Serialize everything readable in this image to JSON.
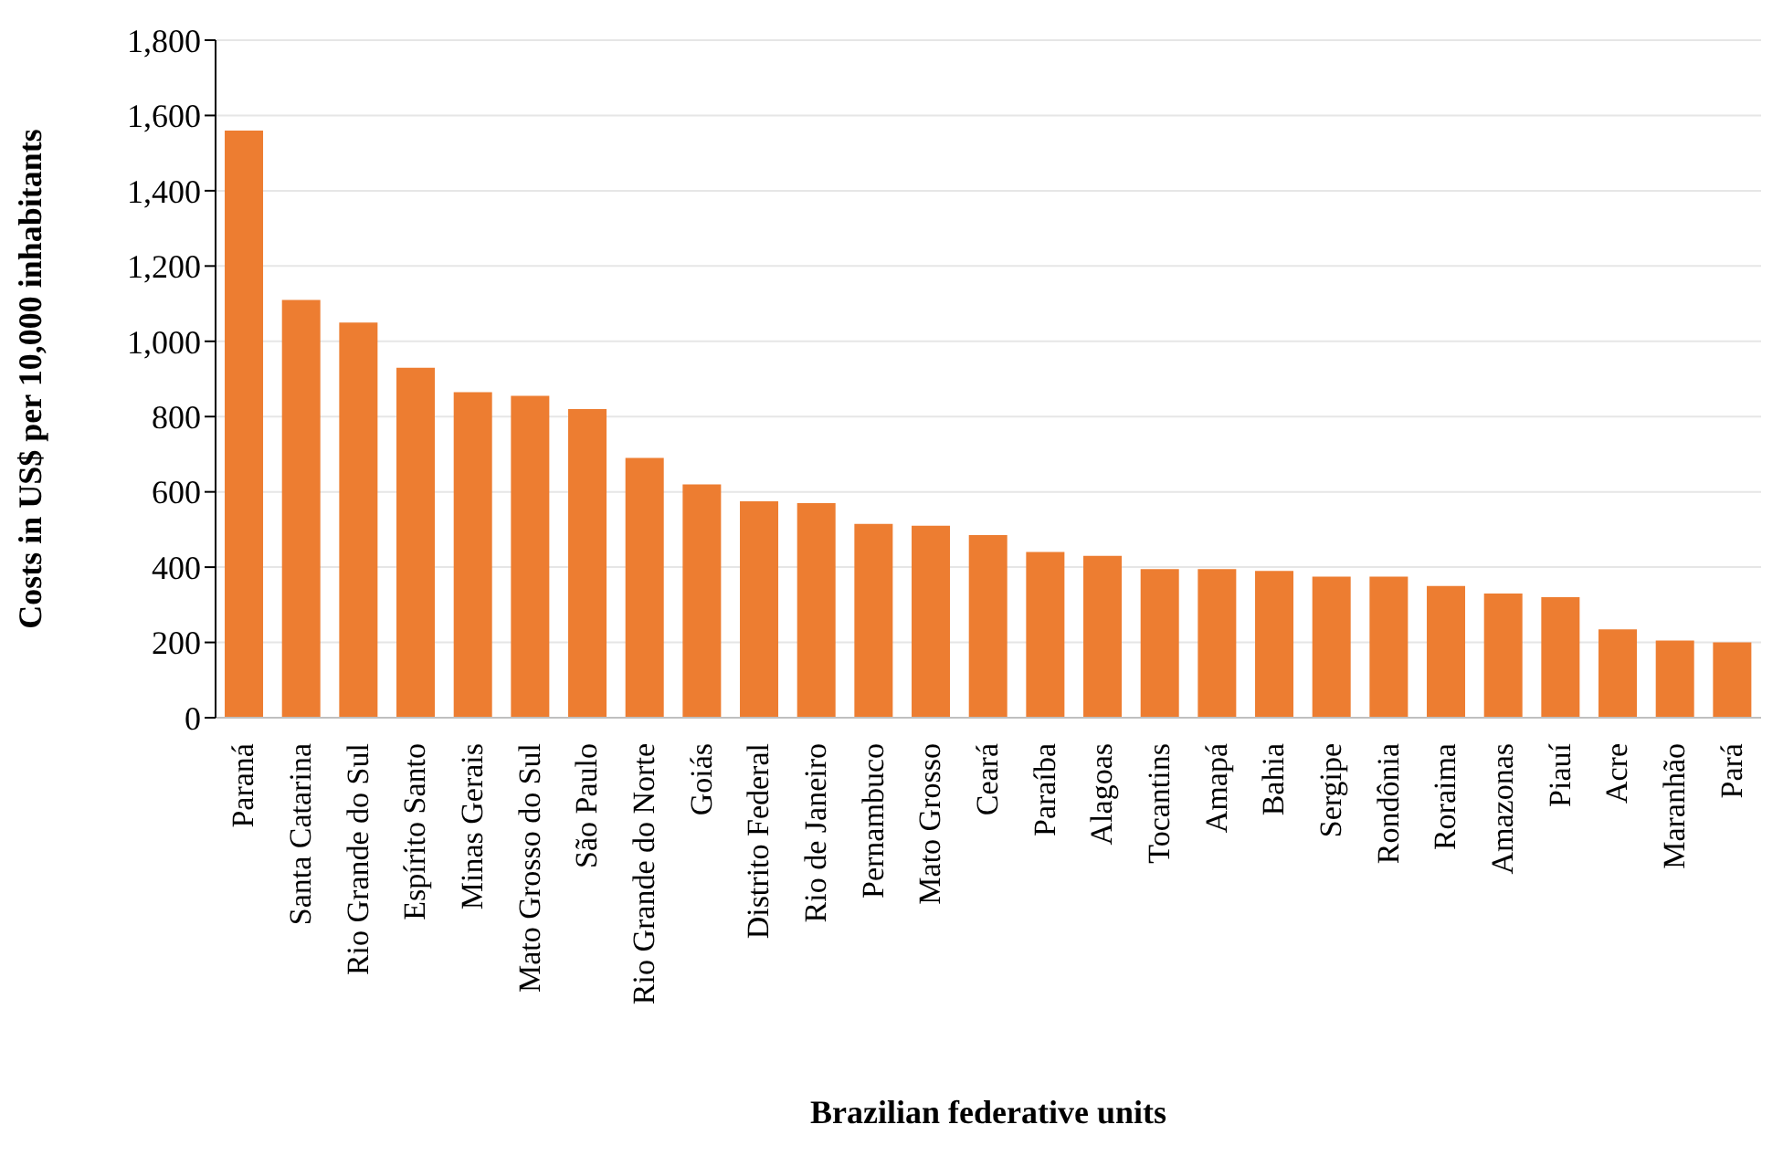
{
  "chart_data": {
    "type": "bar",
    "xlabel": "Brazilian federative units",
    "ylabel": "Costs in US$ per 10,000 inhabitants",
    "categories": [
      "Paraná",
      "Santa Catarina",
      "Rio Grande do Sul",
      "Espírito Santo",
      "Minas Gerais",
      "Mato Grosso do Sul",
      "São Paulo",
      "Rio Grande do Norte",
      "Goiás",
      "Distrito Federal",
      "Rio de Janeiro",
      "Pernambuco",
      "Mato Grosso",
      "Ceará",
      "Paraíba",
      "Alagoas",
      "Tocantins",
      "Amapá",
      "Bahia",
      "Sergipe",
      "Rondônia",
      "Roraima",
      "Amazonas",
      "Piauí",
      "Acre",
      "Maranhão",
      "Pará"
    ],
    "values": [
      1560,
      1110,
      1050,
      930,
      865,
      855,
      820,
      690,
      620,
      575,
      570,
      515,
      510,
      485,
      440,
      430,
      395,
      395,
      390,
      375,
      375,
      350,
      330,
      320,
      235,
      205,
      200
    ],
    "color": "#ed7d31",
    "ylim": [
      0,
      1800
    ],
    "yticks": [
      0,
      200,
      400,
      600,
      800,
      {
        "value": 1000,
        "label": "1,000"
      },
      {
        "value": 1200,
        "label": "1,200"
      },
      {
        "value": 1400,
        "label": "1,400"
      },
      {
        "value": 1600,
        "label": "1,600"
      },
      {
        "value": 1800,
        "label": "1,800"
      }
    ],
    "grid": "y"
  }
}
